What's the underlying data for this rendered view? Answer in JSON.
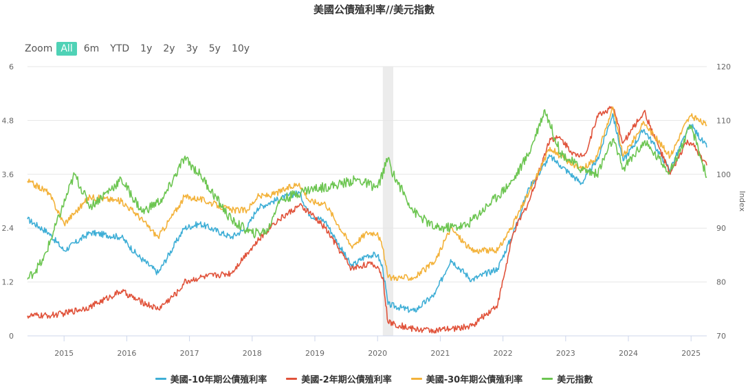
{
  "title": "美國公債殖利率//美元指數",
  "zoom": {
    "label": "Zoom",
    "buttons": [
      "All",
      "6m",
      "YTD",
      "1y",
      "2y",
      "3y",
      "5y",
      "10y"
    ],
    "selected": "All"
  },
  "colors": {
    "ten_year": "#3eaed6",
    "two_year": "#e0523a",
    "thirty_year": "#f3b23a",
    "dollar": "#6cc551",
    "shade": "#e6e6e6",
    "grid": "#e6e6e6",
    "zoom_active": "#4fd2b6"
  },
  "chart_data": {
    "type": "line",
    "title": "美國公債殖利率//美元指數",
    "x_range": [
      "2014-06",
      "2025-04"
    ],
    "x_ticks": [
      "2015",
      "2016",
      "2017",
      "2018",
      "2019",
      "2020",
      "2021",
      "2022",
      "2023",
      "2024",
      "2025"
    ],
    "y_left": {
      "range": [
        0,
        6
      ],
      "ticks": [
        "0",
        "1.2",
        "2.4",
        "3.6",
        "4.8",
        "6"
      ]
    },
    "y_right": {
      "label": "Index",
      "range": [
        70,
        120
      ],
      "ticks": [
        "70",
        "80",
        "90",
        "100",
        "110",
        "120"
      ]
    },
    "shaded_period": [
      "2020-02",
      "2020-04"
    ],
    "grid": true,
    "legend_position": "bottom",
    "series": [
      {
        "name": "美國-10年期公債殖利率",
        "axis": "left",
        "x": [
          "2014-06",
          "2014-10",
          "2015-01",
          "2015-06",
          "2015-12",
          "2016-03",
          "2016-07",
          "2016-11",
          "2016-12",
          "2017-03",
          "2017-09",
          "2017-12",
          "2018-02",
          "2018-05",
          "2018-10",
          "2018-12",
          "2019-03",
          "2019-08",
          "2019-11",
          "2020-01",
          "2020-02",
          "2020-03",
          "2020-08",
          "2020-12",
          "2021-03",
          "2021-07",
          "2021-12",
          "2022-03",
          "2022-06",
          "2022-10",
          "2022-12",
          "2023-04",
          "2023-07",
          "2023-10",
          "2023-12",
          "2024-04",
          "2024-09",
          "2024-12",
          "2025-01",
          "2025-04"
        ],
        "values": [
          2.6,
          2.3,
          1.9,
          2.3,
          2.2,
          1.8,
          1.4,
          2.2,
          2.4,
          2.5,
          2.2,
          2.4,
          2.85,
          3.0,
          3.2,
          2.7,
          2.55,
          1.55,
          1.8,
          1.8,
          1.5,
          0.7,
          0.55,
          0.93,
          1.7,
          1.25,
          1.5,
          2.3,
          3.3,
          4.0,
          3.8,
          3.4,
          3.9,
          4.95,
          3.9,
          4.6,
          3.7,
          4.5,
          4.7,
          4.2
        ]
      },
      {
        "name": "美國-2年期公債殖利率",
        "axis": "left",
        "x": [
          "2014-06",
          "2014-10",
          "2015-01",
          "2015-06",
          "2015-12",
          "2016-03",
          "2016-07",
          "2016-11",
          "2016-12",
          "2017-03",
          "2017-09",
          "2017-12",
          "2018-02",
          "2018-05",
          "2018-10",
          "2018-12",
          "2019-03",
          "2019-08",
          "2019-11",
          "2020-01",
          "2020-02",
          "2020-03",
          "2020-08",
          "2020-12",
          "2021-03",
          "2021-07",
          "2021-12",
          "2022-03",
          "2022-06",
          "2022-10",
          "2022-12",
          "2023-03",
          "2023-05",
          "2023-07",
          "2023-10",
          "2023-12",
          "2024-04",
          "2024-09",
          "2024-12",
          "2025-01",
          "2025-04"
        ],
        "values": [
          0.45,
          0.45,
          0.5,
          0.65,
          1.0,
          0.8,
          0.6,
          1.0,
          1.2,
          1.3,
          1.4,
          1.85,
          2.1,
          2.5,
          2.9,
          2.75,
          2.4,
          1.5,
          1.6,
          1.55,
          1.3,
          0.3,
          0.15,
          0.12,
          0.15,
          0.22,
          0.7,
          2.3,
          3.0,
          4.4,
          4.4,
          4.0,
          4.1,
          4.9,
          5.1,
          4.3,
          5.0,
          3.6,
          4.3,
          4.3,
          3.8
        ]
      },
      {
        "name": "美國-30年期公債殖利率",
        "axis": "left",
        "x": [
          "2014-06",
          "2014-10",
          "2015-01",
          "2015-06",
          "2015-12",
          "2016-03",
          "2016-07",
          "2016-11",
          "2016-12",
          "2017-03",
          "2017-09",
          "2017-12",
          "2018-02",
          "2018-05",
          "2018-10",
          "2018-12",
          "2019-03",
          "2019-08",
          "2019-11",
          "2020-01",
          "2020-02",
          "2020-03",
          "2020-08",
          "2020-12",
          "2021-03",
          "2021-07",
          "2021-12",
          "2022-03",
          "2022-06",
          "2022-10",
          "2022-12",
          "2023-04",
          "2023-07",
          "2023-10",
          "2023-12",
          "2024-04",
          "2024-09",
          "2024-12",
          "2025-01",
          "2025-04"
        ],
        "values": [
          3.45,
          3.2,
          2.5,
          3.1,
          3.0,
          2.7,
          2.2,
          2.9,
          3.1,
          3.05,
          2.8,
          2.8,
          3.1,
          3.15,
          3.4,
          3.0,
          2.95,
          2.0,
          2.3,
          2.3,
          1.95,
          1.3,
          1.3,
          1.65,
          2.4,
          1.9,
          1.9,
          2.5,
          3.2,
          4.2,
          4.0,
          3.7,
          4.0,
          5.1,
          4.0,
          4.75,
          4.0,
          4.75,
          4.9,
          4.7
        ]
      },
      {
        "name": "美元指數",
        "axis": "right",
        "x": [
          "2014-06",
          "2014-09",
          "2015-03",
          "2015-06",
          "2015-12",
          "2016-04",
          "2016-08",
          "2016-12",
          "2017-03",
          "2017-09",
          "2018-01",
          "2018-04",
          "2018-06",
          "2018-11",
          "2019-05",
          "2019-09",
          "2020-01",
          "2020-03",
          "2020-04",
          "2020-08",
          "2020-12",
          "2021-01",
          "2021-06",
          "2021-12",
          "2022-03",
          "2022-06",
          "2022-09",
          "2022-12",
          "2023-04",
          "2023-07",
          "2023-10",
          "2023-12",
          "2024-04",
          "2024-09",
          "2025-01",
          "2025-04"
        ],
        "values": [
          80.5,
          84,
          100,
          94,
          99,
          93,
          95.5,
          103,
          100,
          91.5,
          89,
          89.5,
          95,
          97,
          98,
          99,
          97.5,
          103,
          100,
          93,
          90,
          90,
          90.5,
          96,
          99,
          104,
          112,
          104,
          101,
          100,
          106.5,
          101,
          106,
          100.5,
          109,
          99.5
        ]
      }
    ]
  },
  "legend": [
    {
      "label": "美國-10年期公債殖利率",
      "color": "#3eaed6"
    },
    {
      "label": "美國-2年期公債殖利率",
      "color": "#e0523a"
    },
    {
      "label": "美國-30年期公債殖利率",
      "color": "#f3b23a"
    },
    {
      "label": "美元指數",
      "color": "#6cc551"
    }
  ]
}
